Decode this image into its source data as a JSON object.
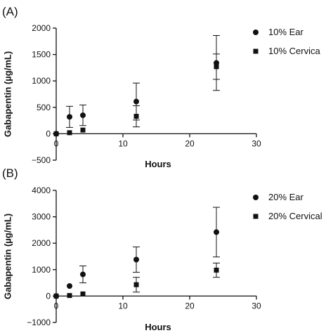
{
  "chart_data": [
    {
      "type": "scatter",
      "panel_label": "(A)",
      "xlabel": "Hours",
      "ylabel": "Gabapentin (µg/mL)",
      "xlim": [
        0,
        30
      ],
      "ylim": [
        -500,
        2000
      ],
      "xticks": [
        "0",
        "10",
        "20",
        "30"
      ],
      "yticks": [
        "2000",
        "1500",
        "1000",
        "500",
        "0",
        "−500"
      ],
      "legend_position": "top-right",
      "series": [
        {
          "name": "10% Ear",
          "marker": "circle",
          "points": [
            {
              "x": 0,
              "y": 0,
              "err": 0
            },
            {
              "x": 2,
              "y": 320,
              "err": 200
            },
            {
              "x": 4,
              "y": 350,
              "err": 195
            },
            {
              "x": 12,
              "y": 610,
              "err": 350
            },
            {
              "x": 24,
              "y": 1340,
              "err": 520
            }
          ]
        },
        {
          "name": "10% Cervica",
          "marker": "square",
          "points": [
            {
              "x": 0,
              "y": 0,
              "err": 0
            },
            {
              "x": 2,
              "y": 20,
              "err": 0
            },
            {
              "x": 4,
              "y": 70,
              "err": 0
            },
            {
              "x": 12,
              "y": 330,
              "err": 200
            },
            {
              "x": 24,
              "y": 1270,
              "err": 240
            }
          ]
        }
      ]
    },
    {
      "type": "scatter",
      "panel_label": "(B)",
      "xlabel": "Hours",
      "ylabel": "Gabapentin (µg/mL)",
      "xlim": [
        0,
        30
      ],
      "ylim": [
        -1000,
        4000
      ],
      "xticks": [
        "0",
        "10",
        "20",
        "30"
      ],
      "yticks": [
        "4000",
        "3000",
        "2000",
        "1000",
        "0",
        "−1000"
      ],
      "legend_position": "top-right",
      "series": [
        {
          "name": "20% Ear",
          "marker": "circle",
          "points": [
            {
              "x": 0,
              "y": 0,
              "err": 0
            },
            {
              "x": 2,
              "y": 380,
              "err": 0
            },
            {
              "x": 4,
              "y": 820,
              "err": 320
            },
            {
              "x": 12,
              "y": 1380,
              "err": 480
            },
            {
              "x": 24,
              "y": 2420,
              "err": 940
            }
          ]
        },
        {
          "name": "20% Cervical",
          "marker": "square",
          "points": [
            {
              "x": 0,
              "y": 0,
              "err": 0
            },
            {
              "x": 2,
              "y": 20,
              "err": 0
            },
            {
              "x": 4,
              "y": 80,
              "err": 0
            },
            {
              "x": 12,
              "y": 430,
              "err": 280
            },
            {
              "x": 24,
              "y": 980,
              "err": 270
            }
          ]
        }
      ]
    }
  ]
}
